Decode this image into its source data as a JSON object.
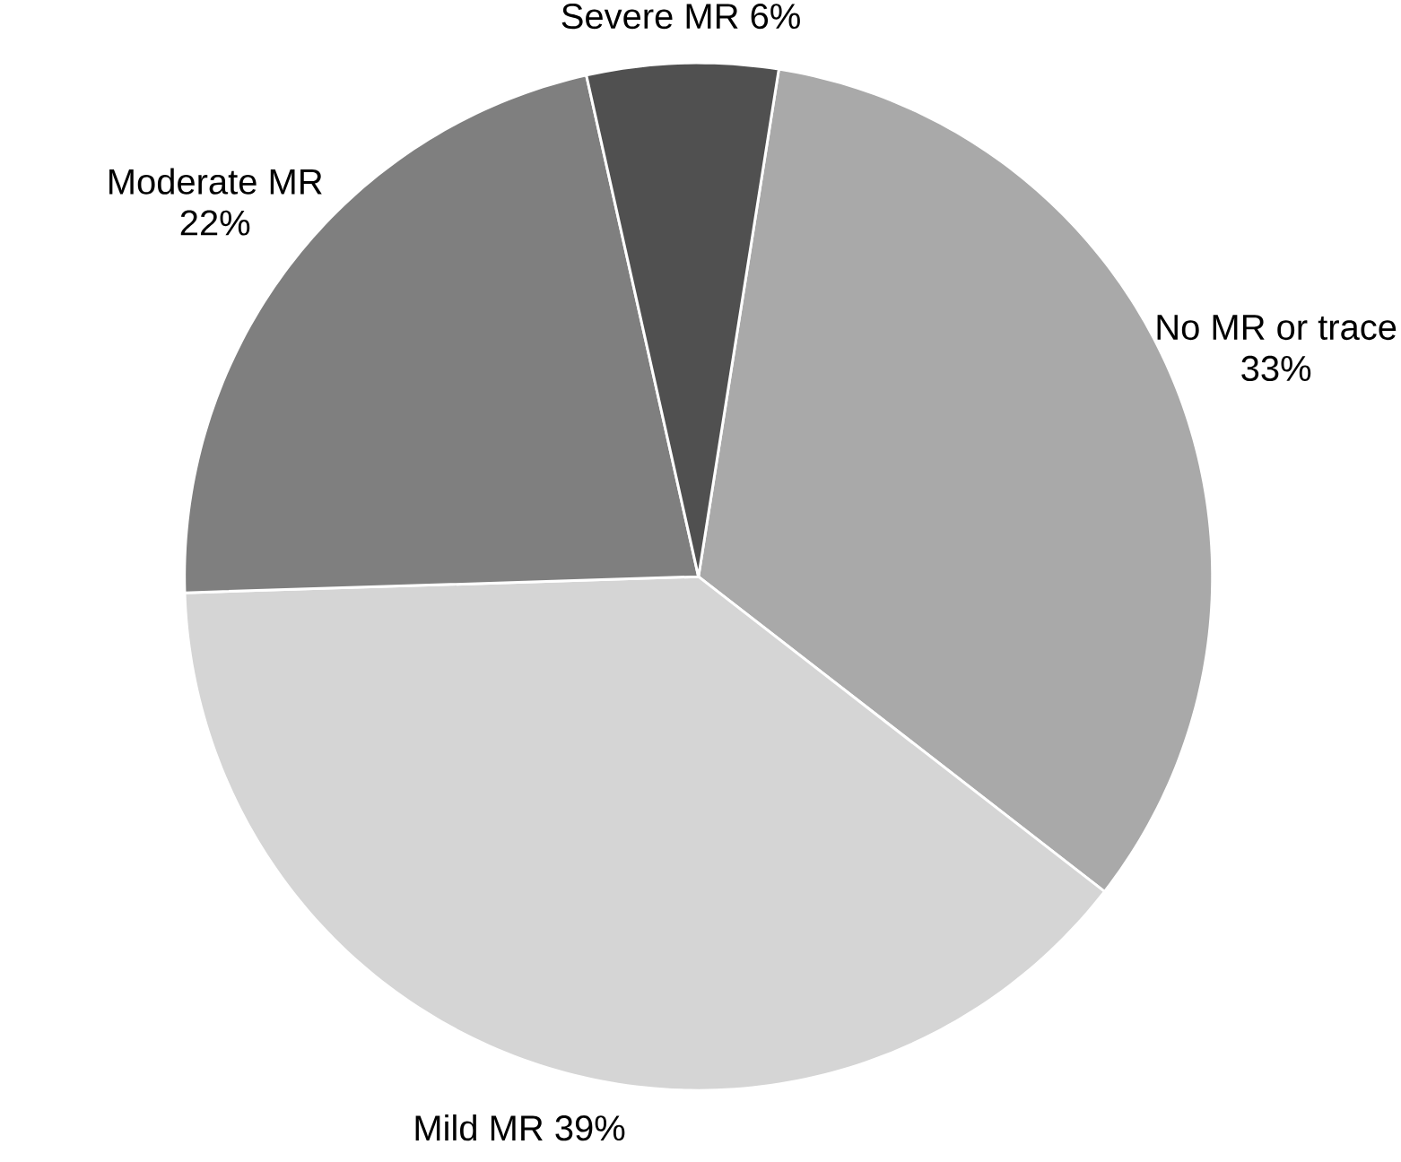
{
  "chart_data": {
    "type": "pie",
    "categories": [
      "No MR or trace",
      "Mild MR",
      "Moderate MR",
      "Severe MR"
    ],
    "values": [
      33,
      39,
      22,
      6
    ],
    "colors": [
      "#a9a9a9",
      "#d5d5d5",
      "#7f7f7f",
      "#505050"
    ],
    "value_labels": [
      "33%",
      "39%",
      "22%",
      "6%"
    ]
  }
}
